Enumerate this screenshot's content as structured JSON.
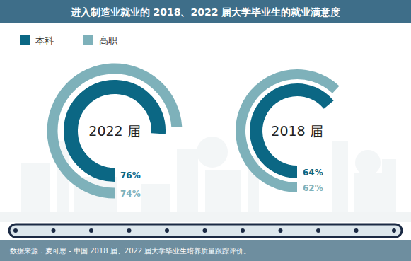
{
  "title": "进入制造业就业的 2018、2022 届大学毕业生的就业满意度",
  "source": "数据来源：麦可思 - 中国 2018 届、2022 届大学毕业生培养质量跟踪评价。",
  "chart_data": [
    {
      "type": "radial_bar",
      "title": "2022 届",
      "ylim": [
        0,
        100
      ],
      "data_labels": true,
      "series": [
        {
          "name": "本科",
          "color": "#0b6784",
          "values": [
            76
          ],
          "value_labels": [
            "76%"
          ]
        },
        {
          "name": "高职",
          "color": "#7eb1ba",
          "values": [
            74
          ],
          "value_labels": [
            "74%"
          ]
        }
      ]
    },
    {
      "type": "radial_bar",
      "title": "2018 届",
      "ylim": [
        0,
        100
      ],
      "data_labels": true,
      "series": [
        {
          "name": "本科",
          "color": "#0b6784",
          "values": [
            64
          ],
          "value_labels": [
            "64%"
          ]
        },
        {
          "name": "高职",
          "color": "#7eb1ba",
          "values": [
            62
          ],
          "value_labels": [
            "62%"
          ]
        }
      ]
    }
  ]
}
